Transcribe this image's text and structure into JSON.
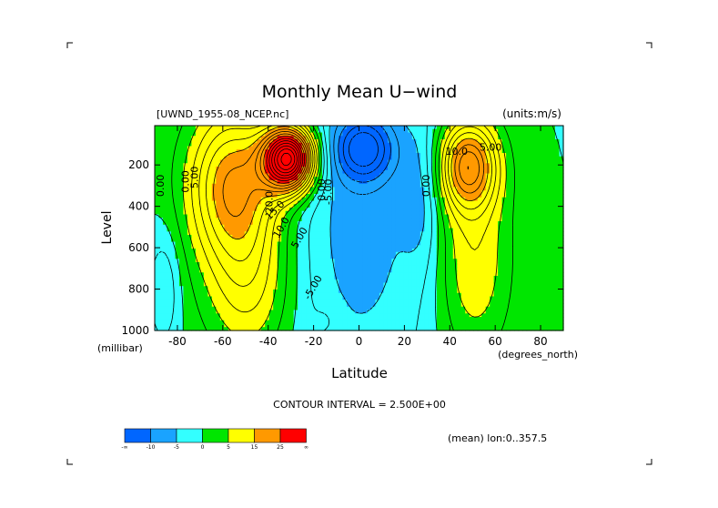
{
  "chart_data": {
    "type": "heatmap",
    "subtype": "filled-contour",
    "title": "Monthly Mean U−wind",
    "dataset_label": "[UWND_1955-08_NCEP.nc]",
    "units_label": "(units:m/s)",
    "xlabel": "Latitude",
    "x_units": "(degrees_north)",
    "ylabel": "Level",
    "y_units": "(millibar)",
    "xlim": [
      -90,
      90
    ],
    "ylim": [
      1000,
      10
    ],
    "x_ticks": [
      -80,
      -60,
      -40,
      -20,
      0,
      20,
      40,
      60,
      80
    ],
    "y_ticks": [
      200,
      400,
      600,
      800,
      1000
    ],
    "contour_interval_text": "CONTOUR INTERVAL = 2.500E+00",
    "mean_text": "(mean) lon:0..357.5",
    "contour_labels": [
      "5.00",
      "0.00",
      "20.0",
      "15.0",
      "10.0",
      "5.00",
      "0.00",
      "-5.00",
      "-5.00",
      "0.00",
      "10.0",
      "5.00",
      "0.00"
    ],
    "colorbar": {
      "colors": [
        "#0066ff",
        "#1aa3ff",
        "#33ffff",
        "#00e600",
        "#ffff00",
        "#ff9900",
        "#ff0000"
      ],
      "tick_labels": [
        "-∞",
        "-10",
        "-5",
        "0",
        "5",
        "15",
        "25",
        "∞"
      ]
    },
    "jets": [
      {
        "lat": -31,
        "p": 200,
        "peak": 40
      },
      {
        "lat": -55,
        "p": 300,
        "peak": 18
      },
      {
        "lat": 48,
        "p": 200,
        "peak": 20
      },
      {
        "lat": 0,
        "p": 150,
        "peak": -13
      }
    ]
  }
}
